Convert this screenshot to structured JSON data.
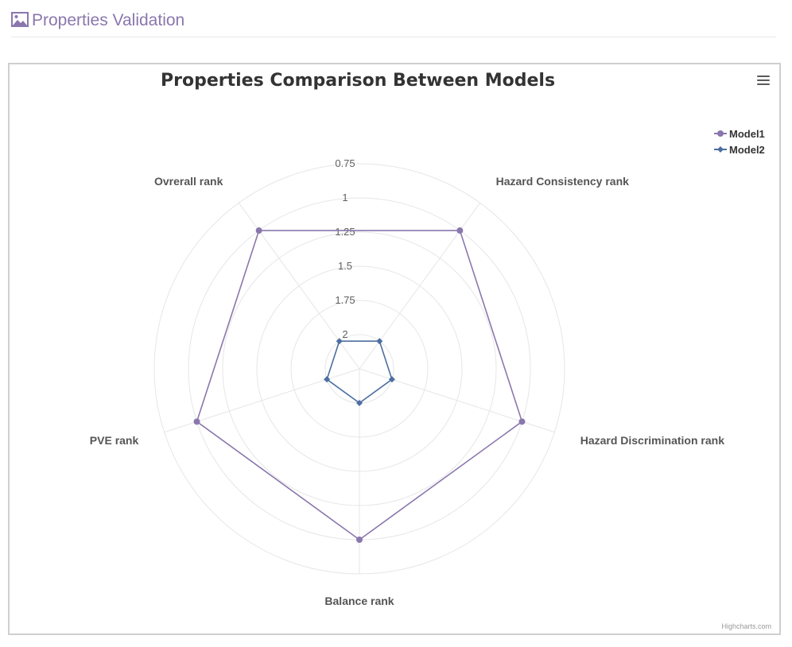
{
  "header": {
    "title": "Properties Validation",
    "icon": "image-icon",
    "color": "#8a77ad"
  },
  "chart_data": {
    "type": "radar",
    "title": "Properties Comparison Between Models",
    "categories": [
      "Hazard Consistency rank",
      "Hazard Discrimination rank",
      "Balance rank",
      "PVE rank",
      "Ovrerall rank"
    ],
    "radial_axis": {
      "tick_labels": [
        "0.75",
        "1",
        "1.25",
        "1.5",
        "1.75",
        "2"
      ],
      "range": [
        0.75,
        2.25
      ],
      "reversed": true
    },
    "series": [
      {
        "name": "Model1",
        "values": [
          1.0,
          1.0,
          1.0,
          1.0,
          1.0
        ],
        "color": "#8a77ad",
        "marker": "circle"
      },
      {
        "name": "Model2",
        "values": [
          2.0,
          2.0,
          2.0,
          2.0,
          2.0
        ],
        "color": "#4c6ea1",
        "marker": "diamond"
      }
    ],
    "legend_position": "top-right",
    "grid": true,
    "credits": "Highcharts.com"
  }
}
